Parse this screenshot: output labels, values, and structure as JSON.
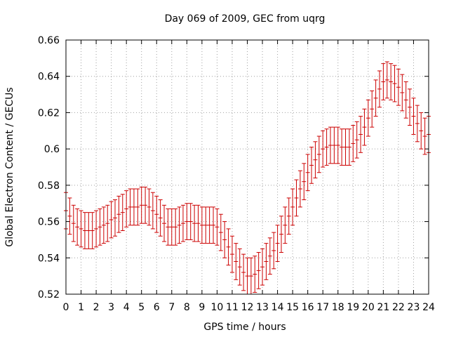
{
  "chart_data": {
    "type": "errorbar",
    "title": "Day 069 of 2009, GEC from uqrg",
    "xlabel": "GPS time / hours",
    "ylabel": "Global Electron Content / GECUs",
    "xlim": [
      0,
      24
    ],
    "ylim": [
      0.52,
      0.66
    ],
    "xticks": [
      "0",
      "1",
      "2",
      "3",
      "4",
      "5",
      "6",
      "7",
      "8",
      "9",
      "10",
      "11",
      "12",
      "13",
      "14",
      "15",
      "16",
      "17",
      "18",
      "19",
      "20",
      "21",
      "22",
      "23",
      "24"
    ],
    "yticks": [
      "0.52",
      "0.54",
      "0.56",
      "0.58",
      "0.6",
      "0.62",
      "0.64",
      "0.66"
    ],
    "grid": true,
    "errorbar_color": "#cc0000",
    "error": 0.01,
    "x": [
      0,
      0.25,
      0.5,
      0.75,
      1,
      1.25,
      1.5,
      1.75,
      2,
      2.25,
      2.5,
      2.75,
      3,
      3.25,
      3.5,
      3.75,
      4,
      4.25,
      4.5,
      4.75,
      5,
      5.25,
      5.5,
      5.75,
      6,
      6.25,
      6.5,
      6.75,
      7,
      7.25,
      7.5,
      7.75,
      8,
      8.25,
      8.5,
      8.75,
      9,
      9.25,
      9.5,
      9.75,
      10,
      10.25,
      10.5,
      10.75,
      11,
      11.25,
      11.5,
      11.75,
      12,
      12.25,
      12.5,
      12.75,
      13,
      13.25,
      13.5,
      13.75,
      14,
      14.25,
      14.5,
      14.75,
      15,
      15.25,
      15.5,
      15.75,
      16,
      16.25,
      16.5,
      16.75,
      17,
      17.25,
      17.5,
      17.75,
      18,
      18.25,
      18.5,
      18.75,
      19,
      19.25,
      19.5,
      19.75,
      20,
      20.25,
      20.5,
      20.75,
      21,
      21.25,
      21.5,
      21.75,
      22,
      22.25,
      22.5,
      22.75,
      23,
      23.25,
      23.5,
      23.75,
      24
    ],
    "values": [
      0.566,
      0.563,
      0.559,
      0.557,
      0.556,
      0.555,
      0.555,
      0.555,
      0.556,
      0.557,
      0.558,
      0.559,
      0.561,
      0.562,
      0.564,
      0.565,
      0.567,
      0.568,
      0.568,
      0.568,
      0.569,
      0.569,
      0.568,
      0.566,
      0.564,
      0.562,
      0.559,
      0.557,
      0.557,
      0.557,
      0.558,
      0.559,
      0.56,
      0.56,
      0.559,
      0.559,
      0.558,
      0.558,
      0.558,
      0.558,
      0.557,
      0.554,
      0.55,
      0.546,
      0.542,
      0.538,
      0.535,
      0.532,
      0.53,
      0.53,
      0.531,
      0.533,
      0.535,
      0.538,
      0.541,
      0.544,
      0.548,
      0.553,
      0.558,
      0.563,
      0.568,
      0.573,
      0.578,
      0.582,
      0.587,
      0.591,
      0.594,
      0.597,
      0.6,
      0.601,
      0.602,
      0.602,
      0.602,
      0.601,
      0.601,
      0.601,
      0.603,
      0.605,
      0.608,
      0.612,
      0.617,
      0.622,
      0.628,
      0.633,
      0.637,
      0.638,
      0.637,
      0.636,
      0.634,
      0.631,
      0.627,
      0.623,
      0.618,
      0.614,
      0.61,
      0.607,
      0.608
    ]
  }
}
